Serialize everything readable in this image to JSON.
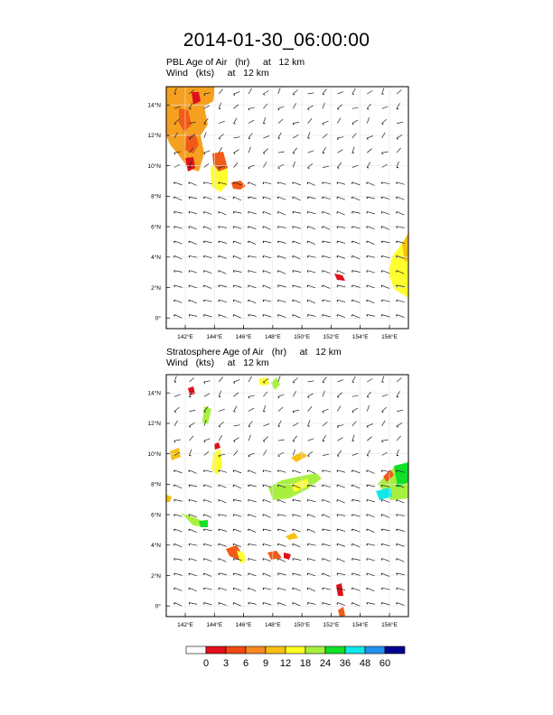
{
  "title": "2014-01-30_06:00:00",
  "panels": [
    {
      "line1": "PBL Age of Air   (hr)     at   12 km",
      "line2": "Wind   (kts)     at   12 km"
    },
    {
      "line1": "Stratosphere Age of Air   (hr)     at   12 km",
      "line2": "Wind   (kts)     at   12 km"
    }
  ],
  "chart_data": {
    "type": "heatmap",
    "x_ticks": [
      "142°E",
      "144°E",
      "146°E",
      "148°E",
      "150°E",
      "152°E",
      "154°E",
      "156°E"
    ],
    "x_range": [
      140.7,
      157.3
    ],
    "y_ticks": [
      "0°",
      "2°N",
      "4°N",
      "6°N",
      "8°N",
      "10°N",
      "12°N",
      "14°N"
    ],
    "y_range": [
      -0.7,
      15.2
    ],
    "colorbar": {
      "labels": [
        "0",
        "3",
        "6",
        "9",
        "12",
        "18",
        "24",
        "36",
        "48",
        "60"
      ],
      "colors": [
        "#ffffff",
        "#e0101a",
        "#f24a10",
        "#f68a20",
        "#f8c010",
        "#ffff20",
        "#a8f040",
        "#10e028",
        "#10e8e8",
        "#2090f0",
        "#000090"
      ]
    }
  }
}
